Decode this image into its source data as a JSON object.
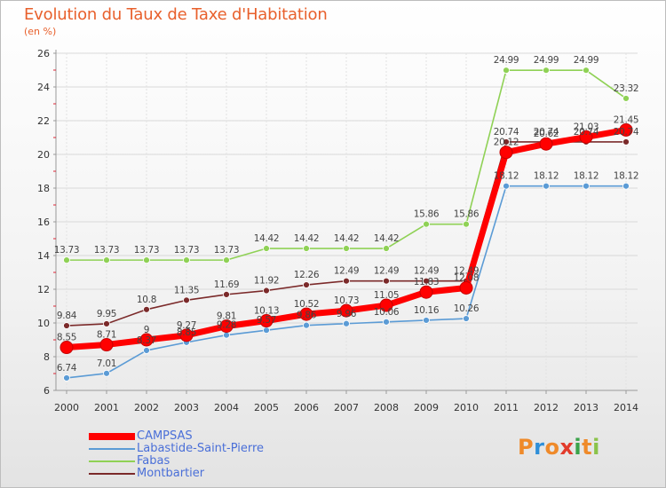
{
  "header": {
    "title": "Evolution du Taux de Taxe d'Habitation",
    "unit": "(en %)"
  },
  "brand": {
    "letters": [
      "P",
      "r",
      "o",
      "x",
      "i",
      "t",
      "i"
    ],
    "colors": [
      "#ef8a2a",
      "#2f8fd8",
      "#ef8a2a",
      "#e23b2b",
      "#3aa34a",
      "#ef8a2a",
      "#8bc34a"
    ]
  },
  "chart_data": {
    "type": "line",
    "title": "Evolution du Taux de Taxe d'Habitation",
    "ylabel": "(en %)",
    "xlabel": "",
    "x": [
      "2000",
      "2001",
      "2002",
      "2003",
      "2004",
      "2005",
      "2006",
      "2007",
      "2008",
      "2009",
      "2010",
      "2011",
      "2012",
      "2013",
      "2014"
    ],
    "ylim": [
      6,
      26
    ],
    "yticks": [
      "6",
      "8",
      "10",
      "12",
      "14",
      "16",
      "18",
      "20",
      "22",
      "24",
      "26"
    ],
    "grid": true,
    "legend_position": "bottom-left",
    "series": [
      {
        "name": "CAMPSAS",
        "color": "#ff0000",
        "values": [
          8.55,
          8.71,
          9,
          9.27,
          9.81,
          10.13,
          10.52,
          10.73,
          11.05,
          11.83,
          12.08,
          20.12,
          20.62,
          21.03,
          21.45
        ],
        "labels": [
          "8.55",
          "8.71",
          "9",
          "9.27",
          "9.81",
          "10.13",
          "10.52",
          "10.73",
          "11.05",
          "11.83",
          "12.08",
          "20.12",
          "20.62",
          "21.03",
          "21.45"
        ]
      },
      {
        "name": "Labastide-Saint-Pierre",
        "color": "#5b9bd5",
        "values": [
          6.74,
          7.01,
          8.37,
          8.85,
          9.28,
          9.57,
          9.86,
          9.96,
          10.06,
          10.16,
          10.26,
          18.12,
          18.12,
          18.12,
          18.12
        ],
        "labels": [
          "6.74",
          "7.01",
          "8.37",
          "8.85",
          "9.28",
          "9.57",
          "9.86",
          "9.96",
          "10.06",
          "10.16",
          "10.26",
          "18.12",
          "18.12",
          "18.12",
          "18.12"
        ]
      },
      {
        "name": "Fabas",
        "color": "#8fd155",
        "values": [
          13.73,
          13.73,
          13.73,
          13.73,
          13.73,
          14.42,
          14.42,
          14.42,
          14.42,
          15.86,
          15.86,
          24.99,
          24.99,
          24.99,
          23.32
        ],
        "labels": [
          "13.73",
          "13.73",
          "13.73",
          "13.73",
          "13.73",
          "14.42",
          "14.42",
          "14.42",
          "14.42",
          "15.86",
          "15.86",
          "24.99",
          "24.99",
          "24.99",
          "23.32"
        ]
      },
      {
        "name": "Montbartier",
        "color": "#7b2a2a",
        "values": [
          9.84,
          9.95,
          10.8,
          11.35,
          11.69,
          11.92,
          12.26,
          12.49,
          12.49,
          12.49,
          12.49,
          20.74,
          20.74,
          20.74,
          20.74
        ],
        "labels": [
          "9.84",
          "9.95",
          "10.8",
          "11.35",
          "11.69",
          "11.92",
          "12.26",
          "12.49",
          "12.49",
          "12.49",
          "12.49",
          "20.74",
          "20.74",
          "20.74",
          "20.74"
        ]
      }
    ]
  }
}
